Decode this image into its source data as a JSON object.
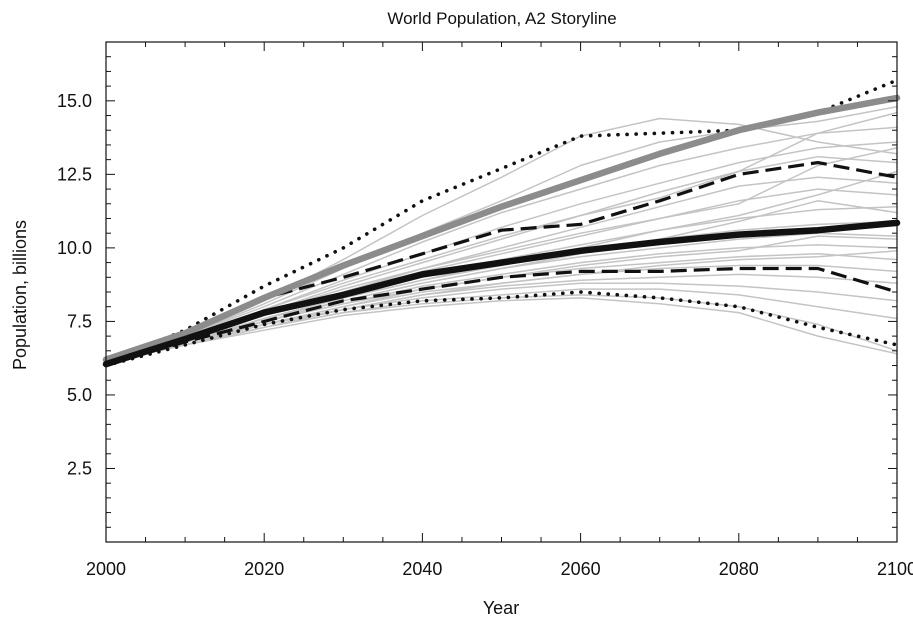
{
  "chart_data": {
    "type": "line",
    "title": "World Population, A2 Storyline",
    "xlabel": "Year",
    "ylabel": "Population, billions",
    "xlim": [
      2000,
      2100
    ],
    "ylim": [
      0,
      17
    ],
    "x_ticks": [
      2000,
      2020,
      2040,
      2060,
      2080,
      2100
    ],
    "x_tick_labels": [
      "2000",
      "2020",
      "2040",
      "2060",
      "2080",
      "2100"
    ],
    "y_ticks": [
      2.5,
      5.0,
      7.5,
      10.0,
      12.5,
      15.0
    ],
    "y_tick_labels": [
      "2.5",
      "5.0",
      "7.5",
      "10.0",
      "12.5",
      "15.0"
    ],
    "grid": false,
    "legend": "none",
    "x": [
      2000,
      2010,
      2020,
      2030,
      2040,
      2050,
      2060,
      2070,
      2080,
      2090,
      2100
    ],
    "series": [
      {
        "style": "thick-gray",
        "color": "#8c8c8c",
        "values": [
          6.2,
          7.1,
          8.3,
          9.4,
          10.4,
          11.4,
          12.3,
          13.2,
          14.0,
          14.6,
          15.1
        ]
      },
      {
        "style": "thick-black",
        "color": "#111111",
        "values": [
          6.05,
          6.9,
          7.8,
          8.4,
          9.1,
          9.5,
          9.9,
          10.2,
          10.45,
          10.6,
          10.85
        ]
      },
      {
        "style": "dashed",
        "color": "#111111",
        "values": [
          6.1,
          7.1,
          8.3,
          9.0,
          9.8,
          10.6,
          10.8,
          11.6,
          12.5,
          12.9,
          12.4
        ]
      },
      {
        "style": "dashed",
        "color": "#111111",
        "values": [
          6.05,
          6.8,
          7.5,
          8.2,
          8.6,
          9.0,
          9.2,
          9.2,
          9.3,
          9.3,
          8.5
        ]
      },
      {
        "style": "dotted",
        "color": "#111111",
        "values": [
          6.1,
          7.2,
          8.7,
          10.0,
          11.6,
          12.7,
          13.8,
          13.9,
          14.0,
          14.6,
          15.7
        ]
      },
      {
        "style": "dotted",
        "color": "#111111",
        "values": [
          6.0,
          6.7,
          7.4,
          7.9,
          8.2,
          8.3,
          8.5,
          8.3,
          8.0,
          7.3,
          6.7
        ]
      },
      {
        "style": "thin-gray",
        "color": "#c4c4c4",
        "values": [
          6.1,
          7.0,
          8.1,
          9.3,
          10.5,
          11.6,
          12.8,
          13.6,
          14.0,
          14.3,
          14.8
        ]
      },
      {
        "style": "thin-gray",
        "color": "#c4c4c4",
        "values": [
          6.1,
          7.0,
          8.2,
          9.6,
          11.1,
          12.4,
          13.8,
          14.4,
          14.2,
          13.6,
          13.2
        ]
      },
      {
        "style": "thin-gray",
        "color": "#c4c4c4",
        "values": [
          6.1,
          7.0,
          8.0,
          9.1,
          10.2,
          11.2,
          12.0,
          12.8,
          13.4,
          13.9,
          14.1
        ]
      },
      {
        "style": "thin-gray",
        "color": "#c4c4c4",
        "values": [
          6.1,
          6.9,
          7.9,
          8.9,
          9.8,
          10.7,
          11.5,
          12.2,
          12.9,
          13.4,
          13.6
        ]
      },
      {
        "style": "thin-gray",
        "color": "#c4c4c4",
        "values": [
          6.1,
          6.9,
          7.8,
          8.7,
          9.5,
          10.3,
          11.1,
          11.9,
          12.6,
          13.1,
          12.9
        ]
      },
      {
        "style": "thin-gray",
        "color": "#c4c4c4",
        "values": [
          6.1,
          6.9,
          7.8,
          8.6,
          9.3,
          10.0,
          10.7,
          11.4,
          12.1,
          12.4,
          12.2
        ]
      },
      {
        "style": "thin-gray",
        "color": "#c4c4c4",
        "values": [
          6.1,
          6.9,
          7.7,
          8.5,
          9.2,
          9.8,
          10.4,
          11.0,
          11.6,
          12.0,
          11.8
        ]
      },
      {
        "style": "thin-gray",
        "color": "#c4c4c4",
        "values": [
          6.1,
          6.9,
          7.7,
          8.4,
          9.0,
          9.6,
          10.1,
          10.6,
          11.0,
          11.3,
          11.4
        ]
      },
      {
        "style": "thin-gray",
        "color": "#c4c4c4",
        "values": [
          6.1,
          6.8,
          7.6,
          8.3,
          8.9,
          9.4,
          9.9,
          10.3,
          10.6,
          10.8,
          10.9
        ]
      },
      {
        "style": "thin-gray",
        "color": "#c4c4c4",
        "values": [
          6.1,
          6.8,
          7.6,
          8.2,
          8.8,
          9.3,
          9.7,
          10.0,
          10.3,
          10.5,
          10.4
        ]
      },
      {
        "style": "thin-gray",
        "color": "#c4c4c4",
        "values": [
          6.1,
          6.8,
          7.5,
          8.1,
          8.7,
          9.1,
          9.5,
          9.8,
          10.0,
          10.1,
          10.0
        ]
      },
      {
        "style": "thin-gray",
        "color": "#c4c4c4",
        "values": [
          6.1,
          6.8,
          7.5,
          8.1,
          8.6,
          9.0,
          9.3,
          9.5,
          9.7,
          9.8,
          9.6
        ]
      },
      {
        "style": "thin-gray",
        "color": "#c4c4c4",
        "values": [
          6.1,
          6.8,
          7.4,
          8.0,
          8.5,
          8.8,
          9.1,
          9.3,
          9.4,
          9.4,
          9.2
        ]
      },
      {
        "style": "thin-gray",
        "color": "#c4c4c4",
        "values": [
          6.1,
          6.7,
          7.4,
          7.9,
          8.4,
          8.7,
          8.9,
          9.0,
          9.1,
          9.0,
          8.8
        ]
      },
      {
        "style": "thin-gray",
        "color": "#c4c4c4",
        "values": [
          6.1,
          6.7,
          7.3,
          7.9,
          8.3,
          8.6,
          8.8,
          8.8,
          8.7,
          8.5,
          8.2
        ]
      },
      {
        "style": "thin-gray",
        "color": "#c4c4c4",
        "values": [
          6.1,
          6.7,
          7.3,
          7.8,
          8.2,
          8.4,
          8.6,
          8.6,
          8.4,
          8.0,
          7.6
        ]
      },
      {
        "style": "thin-gray",
        "color": "#c4c4c4",
        "values": [
          6.1,
          6.7,
          7.3,
          7.8,
          8.1,
          8.3,
          8.4,
          8.3,
          8.0,
          7.4,
          6.5
        ]
      },
      {
        "style": "thin-gray",
        "color": "#c4c4c4",
        "values": [
          6.1,
          6.7,
          7.2,
          7.7,
          8.0,
          8.2,
          8.3,
          8.1,
          7.8,
          7.0,
          6.4
        ]
      },
      {
        "style": "thin-gray",
        "color": "#c4c4c4",
        "values": [
          6.1,
          6.9,
          7.9,
          8.8,
          9.6,
          10.4,
          11.1,
          11.7,
          12.6,
          13.9,
          14.6
        ]
      },
      {
        "style": "thin-gray",
        "color": "#c4c4c4",
        "values": [
          6.1,
          6.9,
          7.7,
          8.5,
          9.3,
          9.9,
          10.5,
          11.0,
          11.5,
          12.8,
          13.4
        ]
      },
      {
        "style": "thin-gray",
        "color": "#c4c4c4",
        "values": [
          6.1,
          6.8,
          7.6,
          8.3,
          8.9,
          9.5,
          10.0,
          10.6,
          11.1,
          11.8,
          12.6
        ]
      },
      {
        "style": "thin-gray",
        "color": "#c4c4c4",
        "values": [
          6.1,
          6.8,
          7.5,
          8.2,
          8.8,
          9.3,
          9.8,
          10.3,
          10.9,
          11.6,
          11.2
        ]
      },
      {
        "style": "thin-gray",
        "color": "#c4c4c4",
        "values": [
          6.1,
          6.8,
          7.4,
          8.0,
          8.6,
          9.0,
          9.4,
          9.7,
          9.9,
          10.4,
          10.3
        ]
      },
      {
        "style": "thin-gray",
        "color": "#c4c4c4",
        "values": [
          6.1,
          6.7,
          7.4,
          7.9,
          8.4,
          8.8,
          9.1,
          9.4,
          9.6,
          9.7,
          9.9
        ]
      }
    ]
  }
}
